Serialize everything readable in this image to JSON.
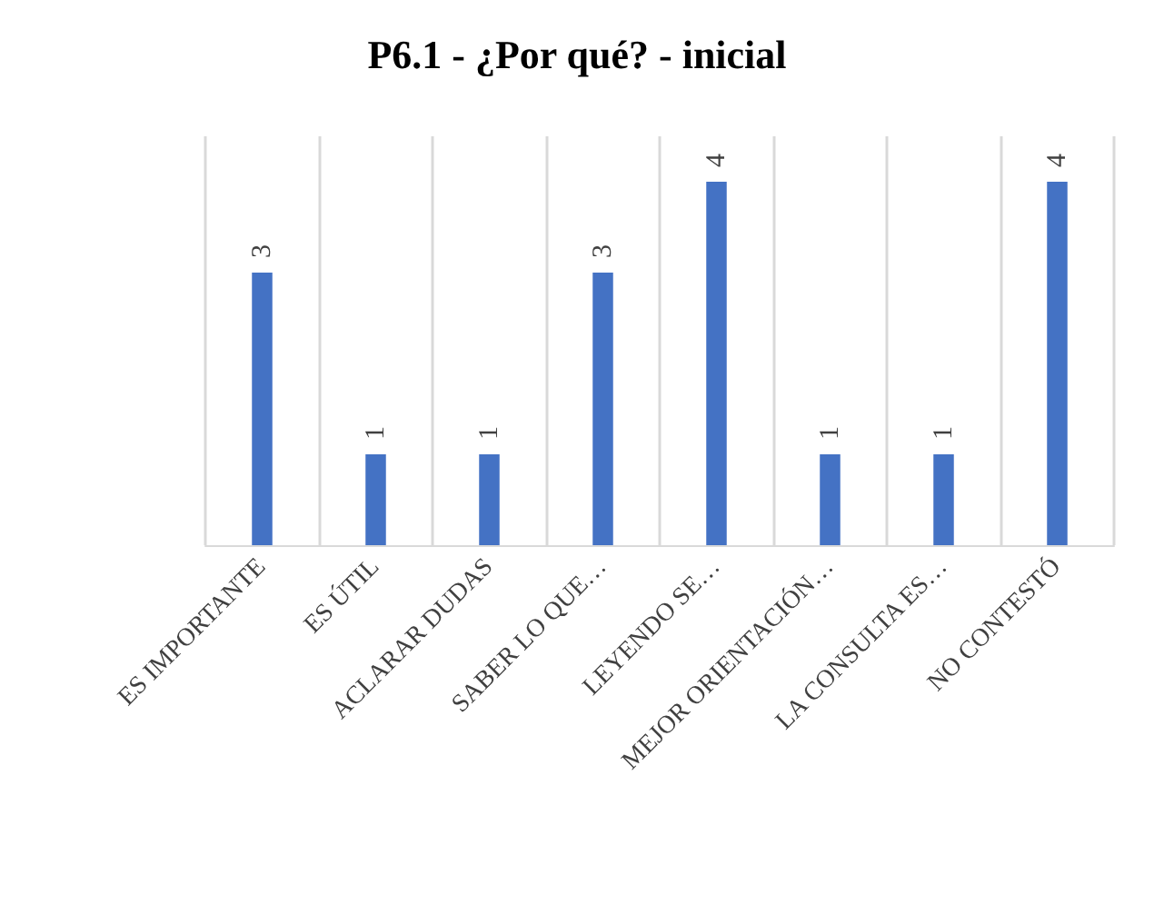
{
  "chart_data": {
    "type": "bar",
    "title": "P6.1 - ¿Por qué? - inicial",
    "categories": [
      "ES IMPORTANTE",
      "ES ÚTIL",
      "ACLARAR DUDAS",
      "SABER LO QUE…",
      "LEYENDO SE…",
      "MEJOR ORIENTACIÓN…",
      "LA CONSULTA ES…",
      "NO CONTESTÓ"
    ],
    "values": [
      3,
      1,
      1,
      3,
      4,
      1,
      1,
      4
    ],
    "color": "#4472c4",
    "ylim": [
      0,
      4.5
    ],
    "data_labels": true,
    "grid": "x",
    "tick_labels": "x"
  }
}
